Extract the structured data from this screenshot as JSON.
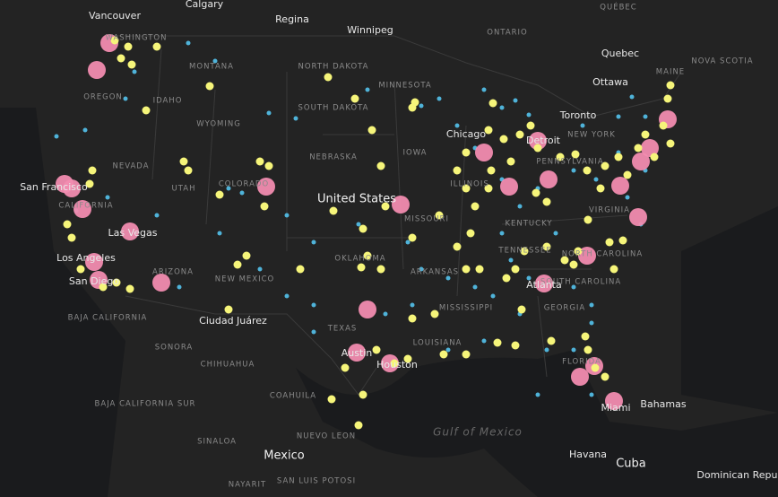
{
  "map": {
    "labels": [
      "Vancouver",
      "Calgary",
      "Regina",
      "Winnipeg",
      "QUÉBEC",
      "ONTARIO",
      "Quebec",
      "Ottawa",
      "MAINE",
      "NOVA SCOTIA",
      "Toronto",
      "WASHINGTON",
      "MONTANA",
      "NORTH DAKOTA",
      "MINNESOTA",
      "IDAHO",
      "SOUTH DAKOTA",
      "WYOMING",
      "OREGON",
      "NEBRASKA",
      "NEVADA",
      "UTAH",
      "COLORADO",
      "San Francisco",
      "United States",
      "IOWA",
      "ILLINOIS",
      "MISSOURI",
      "KENTUCKY",
      "VIRGINIA",
      "Chicago",
      "Detroit",
      "CALIFORNIA",
      "Las Vegas",
      "Los Angeles",
      "San Diego",
      "ARIZONA",
      "NEW MEXICO",
      "OKLAHOMA",
      "ARKANSAS",
      "TENNESSEE",
      "NORTH CAROLINA",
      "SOUTH CAROLINA",
      "GEORGIA",
      "MISSISSIPPI",
      "LOUISIANA",
      "TEXAS",
      "Austin",
      "Houston",
      "Ciudad Juárez",
      "BAJA CALIFORNIA",
      "SONORA",
      "CHIHUAHUA",
      "COAHUILA",
      "BAJA CALIFORNIA SUR",
      "SINALOA",
      "NUEVO LEON",
      "Mexico",
      "SAN LUIS POTOSI",
      "NAYARIT",
      "Gulf of Mexico",
      "Havana",
      "Cuba",
      "Bahamas",
      "Dominican Republic",
      "FLORIDA",
      "Miami",
      "NEW YORK",
      "PENNSYLVANIA",
      "Atlanta"
    ]
  }
}
